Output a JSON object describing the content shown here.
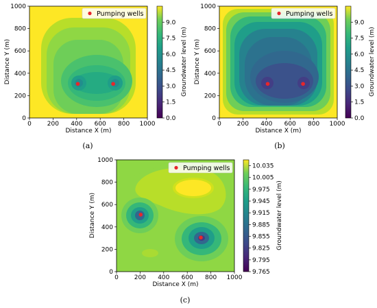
{
  "figure": {
    "captions": [
      "(a)",
      "(b)",
      "(c)"
    ]
  },
  "chart_data": [
    {
      "type": "heatmap",
      "panel": "(a)",
      "xlabel": "Distance X (m)",
      "ylabel": "Distance Y (m)",
      "xlim": [
        0,
        1000
      ],
      "ylim": [
        0,
        1000
      ],
      "xticks": [
        "0",
        "200",
        "400",
        "600",
        "800",
        "1000"
      ],
      "yticks": [
        "0",
        "200",
        "400",
        "600",
        "800",
        "1000"
      ],
      "colorbar_label": "Groundwater level (m)",
      "colorbar_range": [
        0,
        10.5
      ],
      "colorbar_ticks": [
        "0.0",
        "1.5",
        "3.0",
        "4.5",
        "6.0",
        "7.5",
        "9.0"
      ],
      "legend": {
        "label": "Pumping wells",
        "position": "top-right"
      },
      "wells": [
        {
          "x": 410,
          "y": 305
        },
        {
          "x": 710,
          "y": 305
        }
      ],
      "description_levels": {
        "background": 10.2,
        "min_near_wells": 5.8
      }
    },
    {
      "type": "heatmap",
      "panel": "(b)",
      "xlabel": "Distance X (m)",
      "ylabel": "Distance Y (m)",
      "xlim": [
        0,
        1000
      ],
      "ylim": [
        0,
        1000
      ],
      "xticks": [
        "0",
        "200",
        "400",
        "600",
        "800",
        "1000"
      ],
      "yticks": [
        "0",
        "200",
        "400",
        "600",
        "800",
        "1000"
      ],
      "colorbar_label": "Groundwater level (m)",
      "colorbar_range": [
        0,
        10.5
      ],
      "colorbar_ticks": [
        "0.0",
        "1.5",
        "3.0",
        "4.5",
        "6.0",
        "7.5",
        "9.0"
      ],
      "legend": {
        "label": "Pumping wells",
        "position": "top-right"
      },
      "wells": [
        {
          "x": 410,
          "y": 305
        },
        {
          "x": 710,
          "y": 305
        }
      ],
      "description_levels": {
        "background": 10.2,
        "min_near_wells": 3.5
      }
    },
    {
      "type": "heatmap",
      "panel": "(c)",
      "xlabel": "Distance X (m)",
      "ylabel": "Distance Y (m)",
      "xlim": [
        0,
        1000
      ],
      "ylim": [
        0,
        1000
      ],
      "xticks": [
        "0",
        "200",
        "400",
        "600",
        "800",
        "1000"
      ],
      "yticks": [
        "0",
        "200",
        "400",
        "600",
        "800",
        "1000"
      ],
      "colorbar_label": "Groundwater level (m)",
      "colorbar_range": [
        9.765,
        10.05
      ],
      "colorbar_ticks": [
        "9.765",
        "9.795",
        "9.825",
        "9.855",
        "9.885",
        "9.915",
        "9.945",
        "9.975",
        "10.005",
        "10.035"
      ],
      "legend": {
        "label": "Pumping wells",
        "position": "top-right"
      },
      "wells": [
        {
          "x": 205,
          "y": 510
        },
        {
          "x": 715,
          "y": 305
        }
      ],
      "description_levels": {
        "background": 9.99,
        "max_bump": 10.04,
        "min_near_wells": 9.8
      }
    }
  ]
}
